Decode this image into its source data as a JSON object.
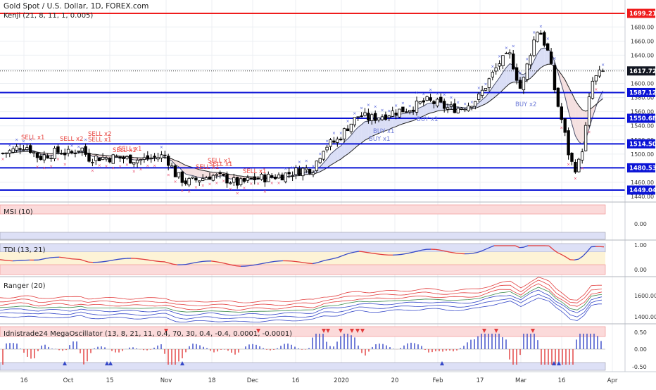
{
  "chart": {
    "symbol_title": "Gold Spot / U.S. Dollar, 1D, FOREX.com",
    "study_title": "Kenji (21, 8, 11, 1, 0.005)"
  },
  "colors": {
    "blue_level": "#0b14d6",
    "red_level": "#ef1c1c",
    "candle_up": "#ffffff",
    "candle_down": "#000000",
    "grid": "#eceff3",
    "sell_label": "#e8413c",
    "buy_label": "#6c7ad8",
    "tag_dark": "#131722"
  },
  "price_axis": {
    "ticks": [
      "1680.00",
      "1660.00",
      "1640.00",
      "1620.00",
      "1600.00",
      "1580.00",
      "1560.00",
      "1540.00",
      "1520.00",
      "1500.00",
      "1480.00",
      "1460.00",
      "1440.00"
    ],
    "levels": [
      {
        "label": "1699.21",
        "kind": "red"
      },
      {
        "label": "1617.72",
        "kind": "current"
      },
      {
        "label": "1587.12",
        "kind": "blue"
      },
      {
        "label": "1550.68",
        "kind": "blue"
      },
      {
        "label": "1514.50",
        "kind": "blue"
      },
      {
        "label": "1480.53",
        "kind": "blue"
      },
      {
        "label": "1449.04",
        "kind": "blue"
      }
    ]
  },
  "signals": {
    "sell": [
      "SELL x1",
      "SELL x2",
      "SELL x2",
      "SELL x1",
      "SELL x1",
      "SELL x1",
      "SELL x1",
      "SELL x1",
      "SELL x1",
      "SELL x1"
    ],
    "buy": [
      "BUY x1",
      "BUY x1",
      "BUY x1",
      "BUY x2"
    ]
  },
  "panes": {
    "msi": {
      "title": "MSI (10)",
      "ticks": [
        "0.00"
      ]
    },
    "tdi": {
      "title": "TDI (13, 21)",
      "ticks": [
        "1.00",
        "0.00"
      ]
    },
    "ranger": {
      "title": "Ranger (20)",
      "ticks": [
        "1600.00",
        "1400.00"
      ]
    },
    "mega": {
      "title": "Idnistrade24 MegaOscillator (13, 8, 21, 11, 0.4, 70, 30, 0.4, -0.4, 0.0001, -0.0001)",
      "ticks": [
        "0.50",
        "0.00",
        "-0.50"
      ]
    }
  },
  "time_axis": {
    "labels": [
      "16",
      "Oct",
      "15",
      "Nov",
      "18",
      "Dec",
      "16",
      "2020",
      "20",
      "Feb",
      "17",
      "Mar",
      "16",
      "Apr"
    ]
  },
  "chart_data": {
    "type": "candlestick",
    "title": "Gold Spot / U.S. Dollar, 1D, FOREX.com",
    "x_range": [
      "2019-09-10",
      "2020-03-27"
    ],
    "y_range": [
      1435,
      1705
    ],
    "levels": [
      1699.21,
      1587.12,
      1550.68,
      1514.5,
      1480.53,
      1449.04
    ],
    "last_price": 1617.72,
    "close_path": [
      [
        0,
        1500
      ],
      [
        18,
        1505
      ],
      [
        30,
        1512
      ],
      [
        40,
        1510
      ],
      [
        55,
        1495
      ],
      [
        70,
        1500
      ],
      [
        85,
        1504
      ],
      [
        100,
        1500
      ],
      [
        115,
        1510
      ],
      [
        125,
        1495
      ],
      [
        145,
        1495
      ],
      [
        165,
        1495
      ],
      [
        185,
        1493
      ],
      [
        200,
        1492
      ],
      [
        220,
        1495
      ],
      [
        235,
        1498
      ],
      [
        250,
        1470
      ],
      [
        265,
        1460
      ],
      [
        285,
        1465
      ],
      [
        300,
        1470
      ],
      [
        320,
        1465
      ],
      [
        340,
        1458
      ],
      [
        360,
        1465
      ],
      [
        380,
        1467
      ],
      [
        400,
        1470
      ],
      [
        415,
        1474
      ],
      [
        430,
        1478
      ],
      [
        445,
        1480
      ],
      [
        460,
        1510
      ],
      [
        480,
        1520
      ],
      [
        495,
        1540
      ],
      [
        510,
        1555
      ],
      [
        525,
        1550
      ],
      [
        545,
        1555
      ],
      [
        560,
        1560
      ],
      [
        575,
        1563
      ],
      [
        590,
        1568
      ],
      [
        605,
        1575
      ],
      [
        620,
        1572
      ],
      [
        635,
        1565
      ],
      [
        650,
        1565
      ],
      [
        665,
        1570
      ],
      [
        680,
        1580
      ],
      [
        695,
        1605
      ],
      [
        710,
        1630
      ],
      [
        725,
        1640
      ],
      [
        740,
        1590
      ],
      [
        755,
        1650
      ],
      [
        765,
        1680
      ],
      [
        780,
        1640
      ],
      [
        790,
        1580
      ],
      [
        800,
        1540
      ],
      [
        810,
        1490
      ],
      [
        820,
        1478
      ],
      [
        830,
        1520
      ],
      [
        840,
        1600
      ],
      [
        850,
        1612
      ],
      [
        858,
        1617
      ]
    ]
  }
}
